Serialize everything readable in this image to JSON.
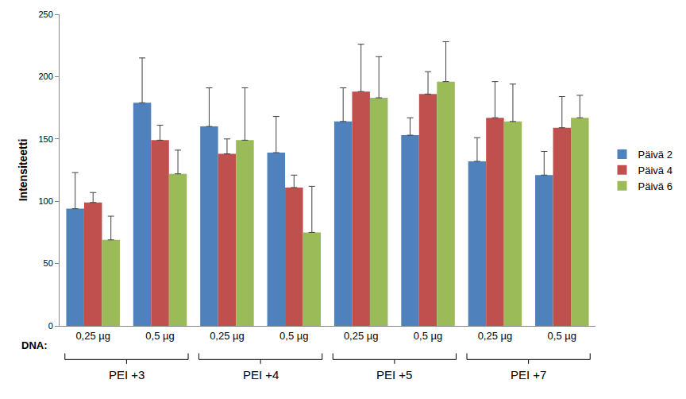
{
  "chart_data": {
    "type": "bar",
    "ylabel": "Intensiteetti",
    "xlabel": "DNA:",
    "categories": [
      "0,25 µg",
      "0,5 µg",
      "0,25 µg",
      "0,5 µg",
      "0,25 µg",
      "0,5 µg",
      "0,25 µg",
      "0,5 µg"
    ],
    "group_labels": [
      "PEI +3",
      "PEI +4",
      "PEI +5",
      "PEI +7"
    ],
    "series": [
      {
        "name": "Päivä 2",
        "color": "#4f81bd",
        "values": [
          94,
          179,
          160,
          139,
          164,
          153,
          132,
          121
        ],
        "error": [
          29,
          36,
          31,
          29,
          27,
          14,
          19,
          19
        ]
      },
      {
        "name": "Päivä 4",
        "color": "#c0504d",
        "values": [
          99,
          149,
          138,
          111,
          188,
          186,
          167,
          159
        ],
        "error": [
          8,
          12,
          12,
          10,
          38,
          18,
          29,
          25
        ]
      },
      {
        "name": "Päivä 6",
        "color": "#9bbb59",
        "values": [
          69,
          122,
          149,
          75,
          183,
          196,
          164,
          167
        ],
        "error": [
          19,
          19,
          42,
          37,
          33,
          32,
          30,
          18
        ]
      }
    ],
    "ylim": [
      0,
      250
    ],
    "yticks": [
      0,
      50,
      100,
      150,
      200,
      250
    ],
    "grid": false,
    "legend": "right"
  }
}
